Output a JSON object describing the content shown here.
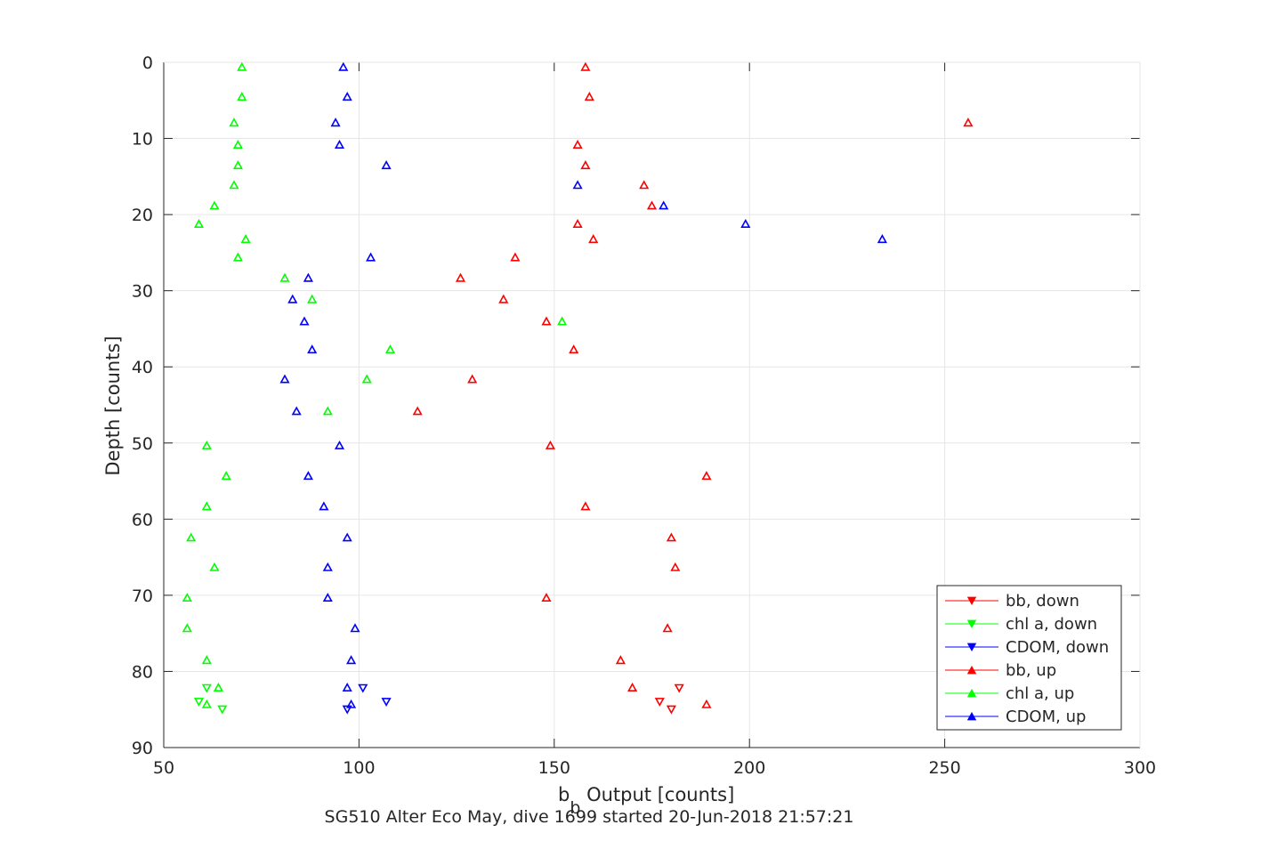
{
  "chart_data": {
    "type": "scatter",
    "xlabel": {
      "main": "b",
      "sub": "b",
      "rest": " Output [counts]"
    },
    "ylabel": "Depth [counts]",
    "caption": "SG510 Alter Eco May, dive 1699 started 20-Jun-2018 21:57:21",
    "xlim": [
      50,
      300
    ],
    "ylim": [
      0,
      90
    ],
    "y_reversed": true,
    "x_ticks": [
      50,
      100,
      150,
      200,
      250,
      300
    ],
    "y_ticks": [
      0,
      10,
      20,
      30,
      40,
      50,
      60,
      70,
      80,
      90
    ],
    "grid": true,
    "legend_position": "bottom-right",
    "series": [
      {
        "name": "bb, down",
        "color": "#ff0000",
        "marker": "triangle-down",
        "points": [
          [
            182,
            82.2
          ],
          [
            177,
            84.0
          ],
          [
            180,
            85.0
          ]
        ]
      },
      {
        "name": "chl a, down",
        "color": "#00ff00",
        "marker": "triangle-down",
        "points": [
          [
            61,
            82.2
          ],
          [
            59,
            84.0
          ],
          [
            65,
            85.0
          ]
        ]
      },
      {
        "name": "CDOM, down",
        "color": "#0000ff",
        "marker": "triangle-down",
        "points": [
          [
            101,
            82.2
          ],
          [
            107,
            84.0
          ],
          [
            97,
            85.0
          ]
        ]
      },
      {
        "name": "bb, up",
        "color": "#ff0000",
        "marker": "triangle-up",
        "points": [
          [
            158,
            0.6
          ],
          [
            159,
            4.5
          ],
          [
            256,
            7.9
          ],
          [
            156,
            10.8
          ],
          [
            158,
            13.5
          ],
          [
            173,
            16.1
          ],
          [
            175,
            18.8
          ],
          [
            156,
            21.2
          ],
          [
            160,
            23.2
          ],
          [
            140,
            25.6
          ],
          [
            126,
            28.3
          ],
          [
            137,
            31.1
          ],
          [
            148,
            34.0
          ],
          [
            155,
            37.7
          ],
          [
            129,
            41.6
          ],
          [
            115,
            45.8
          ],
          [
            149,
            50.3
          ],
          [
            189,
            54.3
          ],
          [
            158,
            58.3
          ],
          [
            180,
            62.4
          ],
          [
            181,
            66.3
          ],
          [
            148,
            70.3
          ],
          [
            179,
            74.3
          ],
          [
            167,
            78.5
          ],
          [
            170,
            82.1
          ],
          [
            189,
            84.3
          ]
        ]
      },
      {
        "name": "chl a, up",
        "color": "#00ff00",
        "marker": "triangle-up",
        "points": [
          [
            70,
            0.6
          ],
          [
            70,
            4.5
          ],
          [
            68,
            7.9
          ],
          [
            69,
            10.8
          ],
          [
            69,
            13.5
          ],
          [
            68,
            16.1
          ],
          [
            63,
            18.8
          ],
          [
            59,
            21.2
          ],
          [
            71,
            23.2
          ],
          [
            69,
            25.6
          ],
          [
            81,
            28.3
          ],
          [
            88,
            31.1
          ],
          [
            152,
            34.0
          ],
          [
            108,
            37.7
          ],
          [
            102,
            41.6
          ],
          [
            92,
            45.8
          ],
          [
            61,
            50.3
          ],
          [
            66,
            54.3
          ],
          [
            61,
            58.3
          ],
          [
            57,
            62.4
          ],
          [
            63,
            66.3
          ],
          [
            56,
            70.3
          ],
          [
            56,
            74.3
          ],
          [
            61,
            78.5
          ],
          [
            64,
            82.1
          ],
          [
            61,
            84.3
          ]
        ]
      },
      {
        "name": "CDOM, up",
        "color": "#0000ff",
        "marker": "triangle-up",
        "points": [
          [
            96,
            0.6
          ],
          [
            97,
            4.5
          ],
          [
            94,
            7.9
          ],
          [
            95,
            10.8
          ],
          [
            107,
            13.5
          ],
          [
            156,
            16.1
          ],
          [
            178,
            18.8
          ],
          [
            199,
            21.2
          ],
          [
            234,
            23.2
          ],
          [
            103,
            25.6
          ],
          [
            87,
            28.3
          ],
          [
            83,
            31.1
          ],
          [
            86,
            34.0
          ],
          [
            88,
            37.7
          ],
          [
            81,
            41.6
          ],
          [
            84,
            45.8
          ],
          [
            95,
            50.3
          ],
          [
            87,
            54.3
          ],
          [
            91,
            58.3
          ],
          [
            97,
            62.4
          ],
          [
            92,
            66.3
          ],
          [
            92,
            70.3
          ],
          [
            99,
            74.3
          ],
          [
            98,
            78.5
          ],
          [
            97,
            82.1
          ],
          [
            98,
            84.3
          ]
        ]
      }
    ]
  }
}
